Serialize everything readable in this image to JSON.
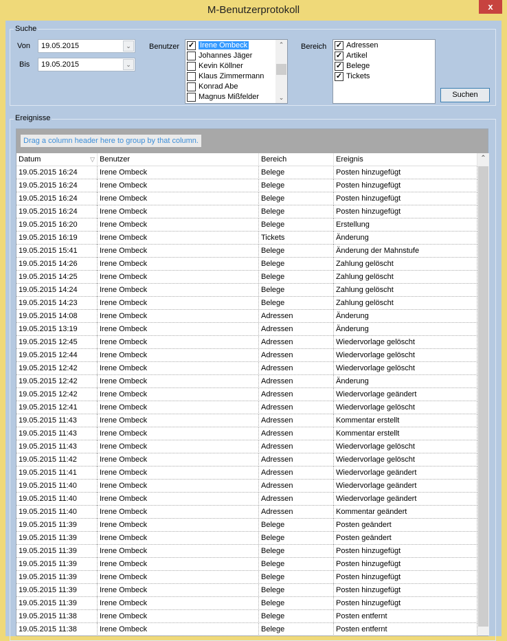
{
  "window": {
    "title": "M-Benutzerprotokoll",
    "close_label": "x"
  },
  "search": {
    "legend": "Suche",
    "von_label": "Von",
    "von_value": "19.05.2015",
    "bis_label": "Bis",
    "bis_value": "19.05.2015",
    "benutzer_label": "Benutzer",
    "users": [
      {
        "name": "Irene Ombeck",
        "checked": true,
        "selected": true
      },
      {
        "name": "Johannes Jäger",
        "checked": false
      },
      {
        "name": "Kevin Köllner",
        "checked": false
      },
      {
        "name": "Klaus Zimmermann",
        "checked": false
      },
      {
        "name": "Konrad Abe",
        "checked": false
      },
      {
        "name": "Magnus Mißfelder",
        "checked": false
      }
    ],
    "bereich_label": "Bereich",
    "areas": [
      {
        "name": "Adressen",
        "checked": true
      },
      {
        "name": "Artikel",
        "checked": true
      },
      {
        "name": "Belege",
        "checked": true
      },
      {
        "name": "Tickets",
        "checked": true
      }
    ],
    "search_button": "Suchen"
  },
  "events": {
    "legend": "Ereignisse",
    "group_hint": "Drag a column header here to group by that column.",
    "columns": [
      "Datum",
      "Benutzer",
      "Bereich",
      "Ereignis"
    ],
    "rows": [
      [
        "19.05.2015 16:24",
        "Irene Ombeck",
        "Belege",
        "Posten hinzugefügt"
      ],
      [
        "19.05.2015 16:24",
        "Irene Ombeck",
        "Belege",
        "Posten hinzugefügt"
      ],
      [
        "19.05.2015 16:24",
        "Irene Ombeck",
        "Belege",
        "Posten hinzugefügt"
      ],
      [
        "19.05.2015 16:24",
        "Irene Ombeck",
        "Belege",
        "Posten hinzugefügt"
      ],
      [
        "19.05.2015 16:20",
        "Irene Ombeck",
        "Belege",
        "Erstellung"
      ],
      [
        "19.05.2015 16:19",
        "Irene Ombeck",
        "Tickets",
        "Änderung"
      ],
      [
        "19.05.2015 15:41",
        "Irene Ombeck",
        "Belege",
        "Änderung der Mahnstufe"
      ],
      [
        "19.05.2015 14:26",
        "Irene Ombeck",
        "Belege",
        "Zahlung gelöscht"
      ],
      [
        "19.05.2015 14:25",
        "Irene Ombeck",
        "Belege",
        "Zahlung gelöscht"
      ],
      [
        "19.05.2015 14:24",
        "Irene Ombeck",
        "Belege",
        "Zahlung gelöscht"
      ],
      [
        "19.05.2015 14:23",
        "Irene Ombeck",
        "Belege",
        "Zahlung gelöscht"
      ],
      [
        "19.05.2015 14:08",
        "Irene Ombeck",
        "Adressen",
        "Änderung"
      ],
      [
        "19.05.2015 13:19",
        "Irene Ombeck",
        "Adressen",
        "Änderung"
      ],
      [
        "19.05.2015 12:45",
        "Irene Ombeck",
        "Adressen",
        "Wiedervorlage gelöscht"
      ],
      [
        "19.05.2015 12:44",
        "Irene Ombeck",
        "Adressen",
        "Wiedervorlage gelöscht"
      ],
      [
        "19.05.2015 12:42",
        "Irene Ombeck",
        "Adressen",
        "Wiedervorlage gelöscht"
      ],
      [
        "19.05.2015 12:42",
        "Irene Ombeck",
        "Adressen",
        "Änderung"
      ],
      [
        "19.05.2015 12:42",
        "Irene Ombeck",
        "Adressen",
        "Wiedervorlage geändert"
      ],
      [
        "19.05.2015 12:41",
        "Irene Ombeck",
        "Adressen",
        "Wiedervorlage gelöscht"
      ],
      [
        "19.05.2015 11:43",
        "Irene Ombeck",
        "Adressen",
        "Kommentar erstellt"
      ],
      [
        "19.05.2015 11:43",
        "Irene Ombeck",
        "Adressen",
        "Kommentar erstellt"
      ],
      [
        "19.05.2015 11:43",
        "Irene Ombeck",
        "Adressen",
        "Wiedervorlage gelöscht"
      ],
      [
        "19.05.2015 11:42",
        "Irene Ombeck",
        "Adressen",
        "Wiedervorlage gelöscht"
      ],
      [
        "19.05.2015 11:41",
        "Irene Ombeck",
        "Adressen",
        "Wiedervorlage geändert"
      ],
      [
        "19.05.2015 11:40",
        "Irene Ombeck",
        "Adressen",
        "Wiedervorlage geändert"
      ],
      [
        "19.05.2015 11:40",
        "Irene Ombeck",
        "Adressen",
        "Wiedervorlage geändert"
      ],
      [
        "19.05.2015 11:40",
        "Irene Ombeck",
        "Adressen",
        "Kommentar geändert"
      ],
      [
        "19.05.2015 11:39",
        "Irene Ombeck",
        "Belege",
        "Posten geändert"
      ],
      [
        "19.05.2015 11:39",
        "Irene Ombeck",
        "Belege",
        "Posten geändert"
      ],
      [
        "19.05.2015 11:39",
        "Irene Ombeck",
        "Belege",
        "Posten hinzugefügt"
      ],
      [
        "19.05.2015 11:39",
        "Irene Ombeck",
        "Belege",
        "Posten hinzugefügt"
      ],
      [
        "19.05.2015 11:39",
        "Irene Ombeck",
        "Belege",
        "Posten hinzugefügt"
      ],
      [
        "19.05.2015 11:39",
        "Irene Ombeck",
        "Belege",
        "Posten hinzugefügt"
      ],
      [
        "19.05.2015 11:39",
        "Irene Ombeck",
        "Belege",
        "Posten hinzugefügt"
      ],
      [
        "19.05.2015 11:38",
        "Irene Ombeck",
        "Belege",
        "Posten entfernt"
      ],
      [
        "19.05.2015 11:38",
        "Irene Ombeck",
        "Belege",
        "Posten entfernt"
      ]
    ]
  }
}
